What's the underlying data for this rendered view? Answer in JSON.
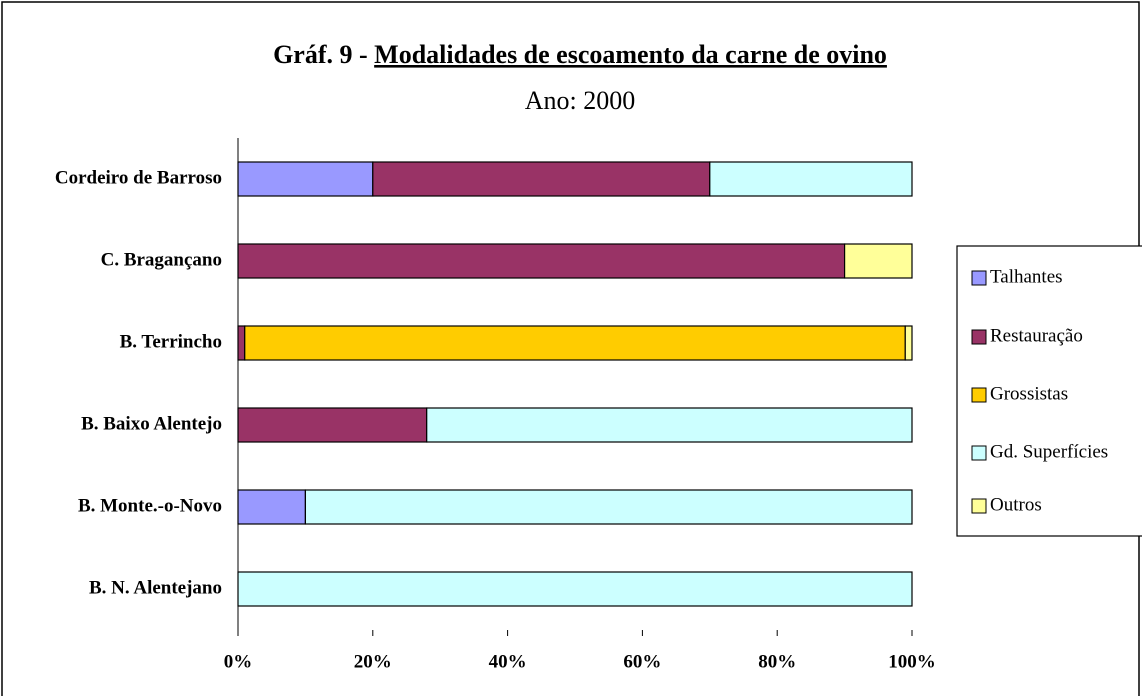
{
  "chart_data": {
    "type": "stacked_barh",
    "title_parts": [
      "Gráf. 9 - ",
      "Modalidades de escoamento da carne de ovino"
    ],
    "subtitle": "Ano: 2000",
    "categories": [
      "Cordeiro de Barroso",
      "C. Bragançano",
      "B. Terrincho",
      "B. Baixo Alentejo",
      "B. Monte.-o-Novo",
      "B. N. Alentejano"
    ],
    "series": [
      {
        "name": "Talhantes",
        "color": "#9999ff",
        "values": [
          20,
          0,
          0,
          0,
          10,
          0
        ]
      },
      {
        "name": "Restauração",
        "color": "#993366",
        "values": [
          50,
          90,
          1,
          28,
          0,
          0
        ]
      },
      {
        "name": "Grossistas",
        "color": "#ffcc00",
        "values": [
          0,
          0,
          98,
          0,
          0,
          0
        ]
      },
      {
        "name": "Gd. Superfícies",
        "color": "#ccffff",
        "values": [
          30,
          0,
          0,
          72,
          90,
          100
        ]
      },
      {
        "name": "Outros",
        "color": "#ffff99",
        "values": [
          0,
          10,
          1,
          0,
          0,
          0
        ]
      }
    ],
    "xlim": [
      0,
      100
    ],
    "xticks": [
      {
        "value": 0,
        "label": "0%"
      },
      {
        "value": 20,
        "label": "20%"
      },
      {
        "value": 40,
        "label": "40%"
      },
      {
        "value": 60,
        "label": "60%"
      },
      {
        "value": 80,
        "label": "80%"
      },
      {
        "value": 100,
        "label": "100%"
      }
    ],
    "legend": "right"
  }
}
